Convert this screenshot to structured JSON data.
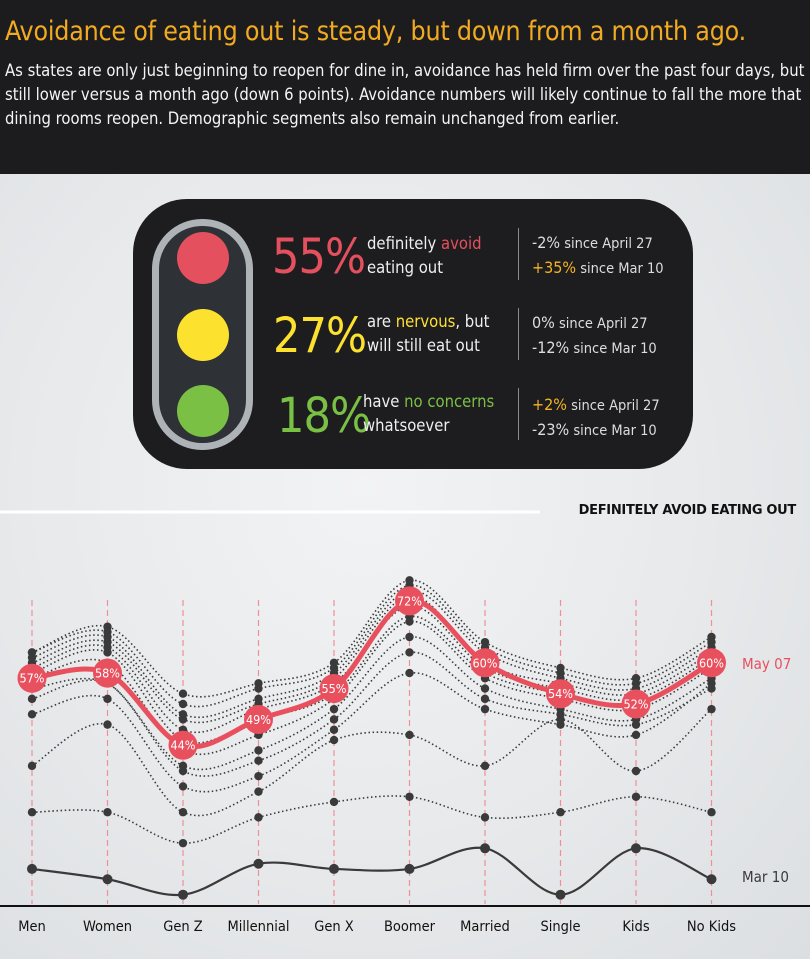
{
  "header": {
    "headline": "Avoidance of eating out is steady, but down from a month ago.",
    "intro": "As states are only just beginning to reopen for dine in, avoidance has held firm over the past four days, but still lower versus a month ago (down 6 points). Avoidance numbers will likely continue to fall the more that dining rooms reopen. Demographic segments also remain unchanged from earlier."
  },
  "traffic_light": {
    "colors": {
      "red": "#e4505e",
      "yellow": "#fde12f",
      "green": "#7ac045",
      "positive_change": "#f4b324"
    },
    "rows": [
      {
        "percent": "55%",
        "line1_pre": "definitely ",
        "line1_highlight": "avoid",
        "line1_post": "",
        "line2": "eating out",
        "change1_value": "-2%",
        "change1_text": "since April 27",
        "change2_value": "+35%",
        "change2_text": "since Mar 10"
      },
      {
        "percent": "27%",
        "line1_pre": "are ",
        "line1_highlight": "nervous",
        "line1_post": ", but",
        "line2": "will still eat out",
        "change1_value": "0%",
        "change1_text": "since April 27",
        "change2_value": "-12%",
        "change2_text": "since Mar 10"
      },
      {
        "percent": "18%",
        "line1_pre": "have ",
        "line1_highlight": "no concerns",
        "line1_post": "",
        "line2": "whatsoever",
        "change1_value": "+2%",
        "change1_text": "since April 27",
        "change2_value": "-23%",
        "change2_text": "since Mar 10"
      }
    ]
  },
  "chart_data": {
    "type": "line",
    "title": "DEFINITELY AVOID EATING OUT",
    "categories": [
      "Men",
      "Women",
      "Gen Z",
      "Millennial",
      "Gen X",
      "Boomer",
      "Married",
      "Single",
      "Kids",
      "No Kids"
    ],
    "series": [
      {
        "name": "May 07",
        "values": [
          57,
          58,
          44,
          49,
          55,
          72,
          60,
          54,
          52,
          60
        ],
        "labels": [
          "57%",
          "58%",
          "44%",
          "49%",
          "55%",
          "72%",
          "60%",
          "54%",
          "52%",
          "60%"
        ],
        "color": "#e8505e"
      },
      {
        "name": "Mar 10",
        "values": [
          20,
          18,
          15,
          21,
          20,
          20,
          24,
          15,
          24,
          18
        ],
        "color": "#3a3a3a"
      }
    ],
    "other_dates": [
      [
        31,
        31,
        25,
        30,
        33,
        34,
        30,
        31,
        34,
        31
      ],
      [
        53,
        56,
        39,
        41,
        49,
        62,
        53,
        50,
        48,
        55
      ],
      [
        55,
        56,
        40,
        43,
        51,
        65,
        55,
        51,
        49,
        57
      ],
      [
        57,
        60,
        43,
        46,
        53,
        68,
        57,
        53,
        51,
        59
      ],
      [
        58,
        62,
        45,
        49,
        54,
        69,
        58,
        54,
        52,
        60
      ],
      [
        59,
        63,
        47,
        51,
        56,
        71,
        59,
        55,
        53,
        61
      ],
      [
        60,
        64,
        49,
        52,
        57,
        73,
        60,
        56,
        54,
        62
      ],
      [
        61,
        65,
        50,
        53,
        58,
        74,
        62,
        57,
        55,
        63
      ],
      [
        62,
        66,
        52,
        55,
        59,
        75,
        63,
        58,
        56,
        64
      ],
      [
        62,
        67,
        54,
        56,
        60,
        76,
        64,
        59,
        57,
        65
      ],
      [
        50,
        53,
        36,
        38,
        47,
        58,
        51,
        48,
        46,
        56
      ],
      [
        40,
        48,
        31,
        35,
        45,
        46,
        40,
        49,
        39,
        51
      ]
    ],
    "ylim": [
      13,
      78
    ]
  }
}
